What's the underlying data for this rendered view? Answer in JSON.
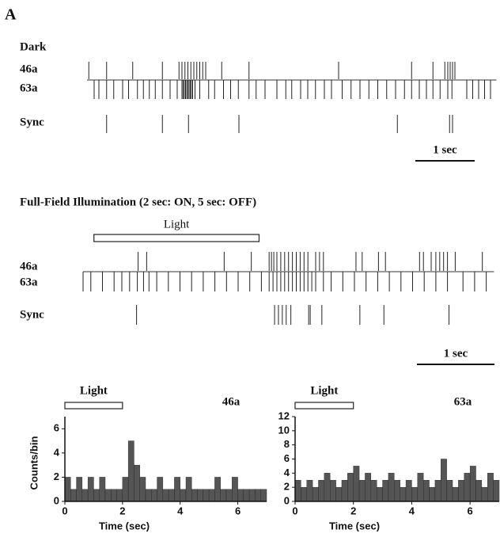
{
  "panel_label": "A",
  "chart_data": [
    {
      "type": "raster",
      "title": "Dark",
      "xlim": [
        0,
        6.9
      ],
      "rows": [
        {
          "name": "46a",
          "times": [
            0.03,
            0.33,
            0.77,
            1.27,
            1.55,
            1.6,
            1.65,
            1.7,
            1.75,
            1.8,
            1.85,
            1.9,
            1.95,
            2.0,
            2.27,
            2.73,
            4.24,
            5.47,
            5.83,
            6.03,
            6.08,
            6.12,
            6.16,
            6.2
          ]
        },
        {
          "name": "63a",
          "times": [
            0.12,
            0.2,
            0.33,
            0.45,
            0.6,
            0.7,
            0.85,
            0.95,
            1.05,
            1.15,
            1.27,
            1.4,
            1.52,
            1.6,
            1.62,
            1.64,
            1.66,
            1.68,
            1.7,
            1.72,
            1.74,
            1.76,
            1.78,
            1.82,
            1.9,
            2.05,
            2.15,
            2.3,
            2.42,
            2.55,
            2.73,
            2.85,
            3.0,
            3.2,
            3.35,
            3.45,
            3.6,
            3.72,
            3.85,
            4.0,
            4.12,
            4.3,
            4.45,
            4.6,
            4.75,
            4.9,
            5.05,
            5.2,
            5.35,
            5.47,
            5.6,
            5.72,
            5.83,
            5.95,
            6.08,
            6.15,
            6.4,
            6.5,
            6.6,
            6.7,
            6.8
          ]
        },
        {
          "name": "Sync",
          "times": [
            0.33,
            1.27,
            1.71,
            2.56,
            5.23,
            6.11,
            6.16
          ]
        }
      ],
      "scale_bar": {
        "value": 1,
        "label": "1 sec"
      }
    },
    {
      "type": "raster",
      "title": "Full-Field Illumination (2 sec: ON, 5 sec: OFF)",
      "xlim": [
        0,
        5.3
      ],
      "stimulus": {
        "label": "Light",
        "start": 0.14,
        "end": 2.27
      },
      "rows": [
        {
          "name": "46a",
          "times": [
            0.71,
            0.82,
            1.82,
            2.17,
            2.4,
            2.43,
            2.46,
            2.5,
            2.55,
            2.6,
            2.65,
            2.7,
            2.75,
            2.8,
            2.85,
            2.9,
            3.0,
            3.05,
            3.1,
            3.52,
            3.6,
            3.81,
            3.9,
            4.34,
            4.39,
            4.49,
            4.55,
            4.6,
            4.65,
            4.7,
            4.8,
            5.15
          ]
        },
        {
          "name": "63a",
          "times": [
            0.0,
            0.1,
            0.25,
            0.4,
            0.5,
            0.6,
            0.7,
            0.78,
            0.85,
            0.95,
            1.1,
            1.25,
            1.4,
            1.55,
            1.7,
            1.85,
            2.0,
            2.15,
            2.3,
            2.4,
            2.45,
            2.5,
            2.55,
            2.6,
            2.65,
            2.7,
            2.75,
            2.8,
            2.85,
            2.9,
            2.95,
            3.0,
            3.1,
            3.2,
            3.35,
            3.5,
            3.65,
            3.8,
            3.95,
            4.1,
            4.25,
            4.4,
            4.55,
            4.7,
            4.9,
            5.05,
            5.2
          ]
        },
        {
          "name": "Sync",
          "times": [
            0.69,
            2.47,
            2.52,
            2.57,
            2.62,
            2.68,
            2.91,
            2.93,
            3.08,
            3.57,
            3.88,
            4.72
          ]
        }
      ],
      "scale_bar": {
        "value": 1,
        "label": "1 sec"
      }
    },
    {
      "type": "histogram",
      "title": "46a",
      "stimulus": {
        "label": "Light",
        "start": 0,
        "end": 2
      },
      "x_label": "Time (sec)",
      "y_label": "Counts/bin",
      "bins": [
        0,
        0.2,
        0.4,
        0.6,
        0.8,
        1,
        1.2,
        1.4,
        1.6,
        1.8,
        2,
        2.2,
        2.4,
        2.6,
        2.8,
        3,
        3.2,
        3.4,
        3.6,
        3.8,
        4,
        4.2,
        4.4,
        4.6,
        4.8,
        5,
        5.2,
        5.4,
        5.6,
        5.8,
        6,
        6.2,
        6.4,
        6.6,
        6.8,
        7
      ],
      "values": [
        2,
        1,
        2,
        1,
        2,
        1,
        2,
        1,
        1,
        1,
        2,
        5,
        3,
        2,
        1,
        1,
        2,
        1,
        1,
        2,
        1,
        2,
        1,
        1,
        1,
        1,
        2,
        1,
        1,
        2,
        1,
        1,
        1,
        1,
        1
      ],
      "xlim": [
        0,
        7
      ],
      "xticks": [
        0,
        2,
        4,
        6
      ],
      "ylim": [
        0,
        7
      ],
      "yticks": [
        0,
        2,
        4,
        6
      ]
    },
    {
      "type": "histogram",
      "title": "63a",
      "stimulus": {
        "label": "Light",
        "start": 0,
        "end": 2
      },
      "x_label": "Time (sec)",
      "bins": [
        0,
        0.2,
        0.4,
        0.6,
        0.8,
        1,
        1.2,
        1.4,
        1.6,
        1.8,
        2,
        2.2,
        2.4,
        2.6,
        2.8,
        3,
        3.2,
        3.4,
        3.6,
        3.8,
        4,
        4.2,
        4.4,
        4.6,
        4.8,
        5,
        5.2,
        5.4,
        5.6,
        5.8,
        6,
        6.2,
        6.4,
        6.6,
        6.8,
        7
      ],
      "values": [
        3,
        2,
        3,
        2,
        3,
        4,
        3,
        2,
        3,
        4,
        5,
        3,
        4,
        3,
        2,
        3,
        4,
        3,
        2,
        3,
        2,
        4,
        3,
        2,
        3,
        6,
        3,
        2,
        3,
        4,
        5,
        3,
        2,
        4,
        3
      ],
      "xlim": [
        0,
        7
      ],
      "xticks": [
        0,
        2,
        4,
        6
      ],
      "ylim": [
        0,
        12
      ],
      "yticks": [
        0,
        2,
        4,
        6,
        8,
        10,
        12
      ]
    }
  ]
}
